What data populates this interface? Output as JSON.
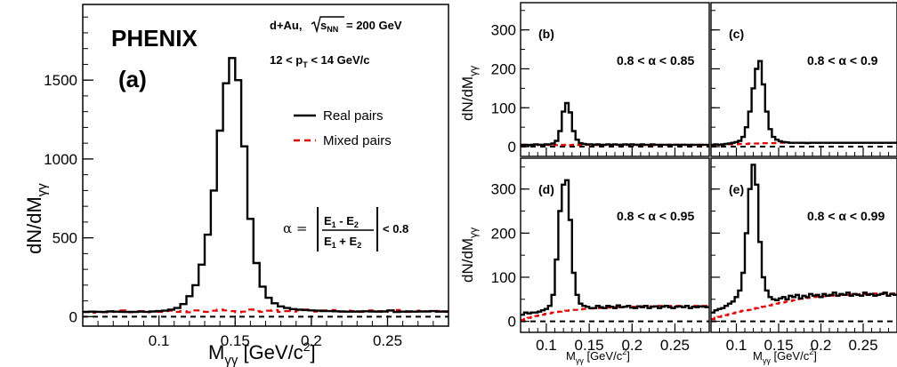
{
  "chart_data": [
    {
      "type": "histogram",
      "panel_label": "(a)",
      "experiment": "PHENIX",
      "system": "d+Au,",
      "energy": "= 200 GeV",
      "sqrt_s_label": "s",
      "sqrt_s_sub": "NN",
      "pt_range": "12 < p",
      "pt_sub": "T",
      "pt_range_tail": " < 14 GeV/c",
      "alpha_lhs": "α =",
      "alpha_num": "E",
      "alpha_num_s1": "1",
      "alpha_num_mid": " - E",
      "alpha_num_s2": "2",
      "alpha_den": "E",
      "alpha_den_s1": "1",
      "alpha_den_mid": " + E",
      "alpha_den_s2": "2",
      "alpha_cut": "< 0.8",
      "xlabel_main": "M",
      "xlabel_sub": "γγ",
      "xlabel_unit": " [GeV/c",
      "xlabel_sup": "2",
      "xlabel_close": "]",
      "ylabel_main": "dN/dM",
      "ylabel_sub": "γγ",
      "xlim": [
        0.05,
        0.29
      ],
      "ylim": [
        -60,
        1980
      ],
      "xticks": [
        "0.1",
        "0.15",
        "0.2",
        "0.25"
      ],
      "yticks": [
        "0",
        "500",
        "1000",
        "1500"
      ],
      "legend": {
        "position": "right",
        "entries": [
          "Real pairs",
          "Mixed pairs"
        ]
      },
      "bin_edges_start": 0.05,
      "bin_width": 0.004,
      "series": [
        {
          "name": "Real pairs",
          "color": "#000000",
          "style": "solid",
          "values": [
            30,
            32,
            31,
            30,
            33,
            32,
            31,
            30,
            30,
            32,
            31,
            33,
            35,
            38,
            45,
            55,
            80,
            130,
            200,
            330,
            520,
            800,
            1180,
            1480,
            1640,
            1500,
            1080,
            620,
            340,
            190,
            120,
            85,
            65,
            55,
            48,
            45,
            42,
            40,
            38,
            36,
            35,
            34,
            33,
            32,
            32,
            33,
            34,
            33,
            32,
            33,
            40,
            30,
            32,
            33,
            32,
            33,
            33,
            35,
            32,
            33
          ]
        },
        {
          "name": "Mixed pairs",
          "color": "#e00000",
          "style": "dashed",
          "values": [
            30,
            25,
            32,
            28,
            35,
            30,
            40,
            28,
            30,
            35,
            28,
            32,
            30,
            35,
            38,
            30,
            35,
            28,
            40,
            32,
            30,
            38,
            45,
            40,
            35,
            28,
            32,
            45,
            35,
            30,
            38,
            42,
            30,
            35,
            32,
            40,
            45,
            38,
            32,
            40,
            35,
            42,
            32,
            38,
            35,
            30,
            36,
            40,
            35,
            30,
            38,
            42,
            35,
            30,
            33,
            38,
            34,
            32,
            36,
            30
          ]
        }
      ]
    },
    {
      "type": "histogram",
      "panel_label": "(b)",
      "cut_label": "0.8 < α < 0.85",
      "ylabel_main": "dN/dM",
      "ylabel_sub": "γγ",
      "xlim": [
        0.07,
        0.29
      ],
      "ylim": [
        -25,
        370
      ],
      "yticks": [
        "0",
        "100",
        "200",
        "300"
      ],
      "bin_edges_start": 0.07,
      "bin_width": 0.004,
      "series": [
        {
          "name": "Real pairs",
          "color": "#000000",
          "style": "solid",
          "values": [
            5,
            5,
            4,
            5,
            6,
            5,
            5,
            6,
            6,
            8,
            15,
            40,
            90,
            112,
            88,
            40,
            18,
            9,
            7,
            6,
            6,
            5,
            6,
            5,
            5,
            6,
            5,
            6,
            5,
            5,
            6,
            5,
            6,
            5,
            5,
            6,
            5,
            5,
            6,
            5,
            5,
            5,
            5,
            5,
            5,
            5,
            5,
            5,
            5,
            5,
            5,
            5,
            5,
            5,
            5
          ]
        },
        {
          "name": "Mixed pairs",
          "color": "#e00000",
          "style": "dashed",
          "values": [
            4,
            5,
            4,
            5,
            4,
            5,
            4,
            5,
            4,
            5,
            4,
            5,
            4,
            5,
            4,
            5,
            4,
            5,
            4,
            5,
            4,
            5,
            4,
            5,
            4,
            5,
            4,
            5,
            4,
            5,
            4,
            5,
            4,
            5,
            4,
            5,
            4,
            5,
            4,
            5,
            4,
            5,
            4,
            5,
            4,
            5,
            4,
            5,
            4,
            5,
            4,
            5,
            4,
            5,
            4
          ]
        }
      ]
    },
    {
      "type": "histogram",
      "panel_label": "(c)",
      "cut_label": "0.8 < α < 0.9",
      "xlim": [
        0.07,
        0.29
      ],
      "ylim": [
        -25,
        370
      ],
      "bin_edges_start": 0.07,
      "bin_width": 0.004,
      "series": [
        {
          "name": "Real pairs",
          "color": "#000000",
          "style": "solid",
          "values": [
            5,
            6,
            5,
            6,
            7,
            8,
            10,
            12,
            15,
            25,
            50,
            90,
            150,
            200,
            220,
            160,
            90,
            45,
            25,
            18,
            14,
            12,
            11,
            10,
            10,
            10,
            10,
            10,
            9,
            10,
            10,
            10,
            10,
            10,
            10,
            10,
            10,
            10,
            10,
            10,
            10,
            10,
            10,
            10,
            10,
            10,
            10,
            10,
            10,
            10,
            10,
            10,
            10,
            10,
            10
          ]
        },
        {
          "name": "Mixed pairs",
          "color": "#e00000",
          "style": "dashed",
          "values": [
            4,
            4,
            5,
            5,
            5,
            6,
            6,
            6,
            7,
            7,
            7,
            8,
            8,
            8,
            8,
            9,
            9,
            9,
            9,
            10,
            10,
            10,
            10,
            10,
            10,
            10,
            10,
            10,
            10,
            10,
            10,
            10,
            10,
            10,
            10,
            10,
            10,
            10,
            10,
            10,
            10,
            10,
            10,
            10,
            10,
            10,
            10,
            10,
            10,
            10,
            10,
            10,
            10,
            10,
            10
          ]
        }
      ]
    },
    {
      "type": "histogram",
      "panel_label": "(d)",
      "cut_label": "0.8 < α < 0.95",
      "ylabel_main": "dN/dM",
      "ylabel_sub": "γγ",
      "xlabel_main": "M",
      "xlabel_sub": "γγ",
      "xlabel_unit": " [GeV/c",
      "xlabel_sup": "2",
      "xlabel_close": "]",
      "xlim": [
        0.07,
        0.29
      ],
      "ylim": [
        -25,
        370
      ],
      "xticks": [
        "0.1",
        "0.15",
        "0.2",
        "0.25"
      ],
      "yticks": [
        "0",
        "100",
        "200",
        "300"
      ],
      "bin_edges_start": 0.07,
      "bin_width": 0.004,
      "series": [
        {
          "name": "Real pairs",
          "color": "#000000",
          "style": "solid",
          "values": [
            15,
            20,
            18,
            20,
            20,
            22,
            25,
            28,
            35,
            60,
            140,
            250,
            310,
            320,
            230,
            110,
            60,
            40,
            35,
            33,
            30,
            30,
            35,
            32,
            30,
            35,
            33,
            30,
            36,
            32,
            33,
            35,
            31,
            30,
            34,
            32,
            35,
            30,
            33,
            34,
            30,
            33,
            35,
            32,
            30,
            33,
            34,
            32,
            35,
            30,
            33,
            32,
            34,
            33,
            32
          ]
        },
        {
          "name": "Mixed pairs",
          "color": "#e00000",
          "style": "dashed",
          "values": [
            3,
            5,
            8,
            10,
            12,
            13,
            15,
            17,
            18,
            20,
            21,
            22,
            23,
            24,
            25,
            26,
            26,
            27,
            28,
            28,
            29,
            29,
            30,
            30,
            31,
            31,
            31,
            32,
            32,
            32,
            33,
            33,
            33,
            33,
            34,
            34,
            34,
            34,
            34,
            35,
            35,
            35,
            35,
            35,
            35,
            35,
            35,
            35,
            35,
            35,
            35,
            35,
            35,
            35,
            35
          ]
        }
      ]
    },
    {
      "type": "histogram",
      "panel_label": "(e)",
      "cut_label": "0.8 < α < 0.99",
      "xlabel_main": "M",
      "xlabel_sub": "γγ",
      "xlabel_unit": " [GeV/c",
      "xlabel_sup": "2",
      "xlabel_close": "]",
      "xlim": [
        0.07,
        0.29
      ],
      "ylim": [
        -25,
        370
      ],
      "xticks": [
        "0.1",
        "0.15",
        "0.2",
        "0.25"
      ],
      "bin_edges_start": 0.07,
      "bin_width": 0.004,
      "series": [
        {
          "name": "Real pairs",
          "color": "#000000",
          "style": "solid",
          "values": [
            20,
            25,
            28,
            30,
            35,
            40,
            45,
            55,
            70,
            110,
            200,
            300,
            355,
            310,
            180,
            100,
            70,
            55,
            50,
            48,
            52,
            55,
            50,
            58,
            55,
            60,
            52,
            58,
            55,
            62,
            58,
            60,
            55,
            62,
            58,
            60,
            65,
            58,
            62,
            60,
            65,
            58,
            62,
            60,
            58,
            65,
            60,
            62,
            58,
            60,
            62,
            65,
            58,
            62,
            60
          ]
        },
        {
          "name": "Mixed pairs",
          "color": "#e00000",
          "style": "dashed",
          "values": [
            5,
            8,
            10,
            12,
            14,
            16,
            18,
            20,
            22,
            24,
            25,
            26,
            28,
            30,
            32,
            33,
            34,
            36,
            38,
            40,
            42,
            43,
            45,
            46,
            48,
            50,
            51,
            52,
            53,
            54,
            55,
            56,
            57,
            57,
            58,
            58,
            59,
            59,
            60,
            60,
            60,
            61,
            61,
            61,
            62,
            62,
            62,
            62,
            63,
            63,
            63,
            63,
            63,
            63,
            63
          ]
        }
      ]
    }
  ]
}
